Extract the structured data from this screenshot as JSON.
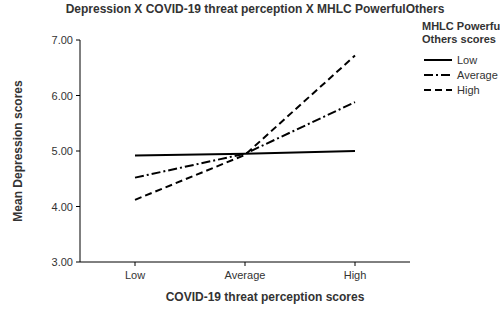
{
  "chart_data": {
    "type": "line",
    "title": "Depression X COVID-19 threat perception X MHLC PowerfulOthers",
    "x_label": "COVID-19 threat perception scores",
    "y_label": "Mean Depression scores",
    "legend_title": "MHLC Powerful Others scores",
    "legend": "right",
    "grid": false,
    "categories": [
      "Low",
      "Average",
      "High"
    ],
    "ylim": [
      3,
      7
    ],
    "yticks": [
      {
        "value": 3,
        "label": "3.00"
      },
      {
        "value": 4,
        "label": "4.00"
      },
      {
        "value": 5,
        "label": "5.00"
      },
      {
        "value": 6,
        "label": "6.00"
      },
      {
        "value": 7,
        "label": "7.00"
      }
    ],
    "series": [
      {
        "name": "Low",
        "color": "#000000",
        "line_style": "solid",
        "values": [
          4.92,
          4.95,
          5.0
        ]
      },
      {
        "name": "Average",
        "color": "#000000",
        "line_style": "dashdot",
        "values": [
          4.52,
          4.95,
          5.88
        ]
      },
      {
        "name": "High",
        "color": "#000000",
        "line_style": "dashed",
        "values": [
          4.12,
          4.93,
          6.72
        ]
      }
    ]
  }
}
